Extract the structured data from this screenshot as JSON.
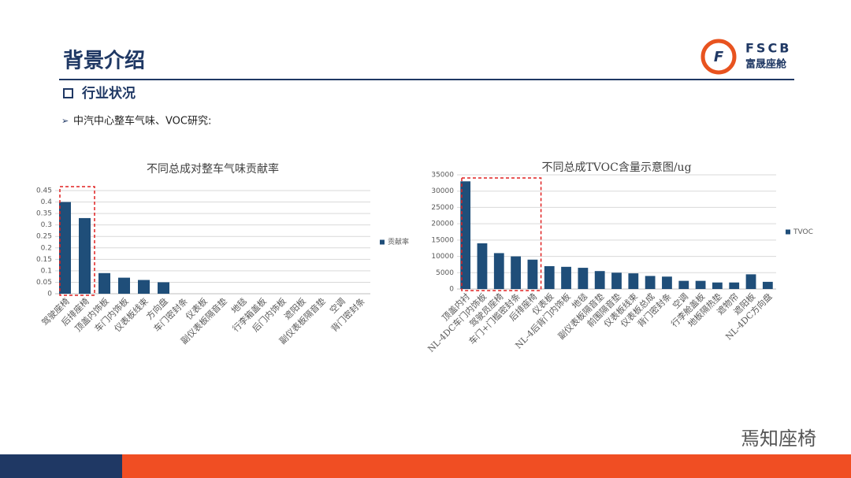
{
  "header": {
    "title": "背景介绍",
    "logo_text": "FSCB",
    "logo_subtext": "富晟座舱",
    "section": "行业状况",
    "bullet": "中汽中心整车气味、VOC研究:",
    "watermark": "焉知座椅"
  },
  "chart_data": [
    {
      "type": "bar",
      "title": "不同总成对整车气味贡献率",
      "categories": [
        "驾驶座椅",
        "后排座椅",
        "顶盖内饰板",
        "车门内饰板",
        "仪表板线束",
        "方向盘",
        "车门密封条",
        "仪表板",
        "副仪表板隔音垫",
        "地毯",
        "行李箱盖板",
        "后门内饰板",
        "遮阳板",
        "副仪表板隔音垫",
        "空调",
        "背门密封条"
      ],
      "series": [
        {
          "name": "贡献率",
          "color": "#1f4e79",
          "values": [
            0.4,
            0.33,
            0.09,
            0.07,
            0.06,
            0.05,
            0,
            0,
            0,
            0,
            0,
            0,
            0,
            0,
            0,
            0
          ]
        }
      ],
      "ylim": [
        0,
        0.45
      ],
      "yticks": [
        0,
        0.05,
        0.1,
        0.15,
        0.2,
        0.25,
        0.3,
        0.35,
        0.4,
        0.45
      ],
      "grid": true,
      "legend": "right"
    },
    {
      "type": "bar",
      "title": "不同总成TVOC含量示意图/ug",
      "categories": [
        "顶盖内衬",
        "NL-4DC车门内饰板",
        "驾驶员座椅",
        "车门+门槛密封条",
        "后排座椅",
        "仪表板",
        "NL-4后背门内饰板",
        "地毯",
        "副仪表板隔音垫",
        "前围隔音垫",
        "仪表板线束",
        "仪表板总成",
        "背门密封条",
        "空调",
        "行李舱盖板",
        "地板隔热垫",
        "遮物帘",
        "遮阳板",
        "NL-4DC方向盘"
      ],
      "series": [
        {
          "name": "TVOC",
          "color": "#1f4e79",
          "values": [
            33000,
            14000,
            11000,
            10000,
            9000,
            7000,
            6800,
            6500,
            5500,
            5000,
            4800,
            4000,
            3800,
            2500,
            2500,
            2000,
            2000,
            4500,
            2200
          ]
        }
      ],
      "ylim": [
        0,
        35000
      ],
      "yticks": [
        0,
        5000,
        10000,
        15000,
        20000,
        25000,
        30000,
        35000
      ],
      "grid": true,
      "legend": "right"
    }
  ]
}
